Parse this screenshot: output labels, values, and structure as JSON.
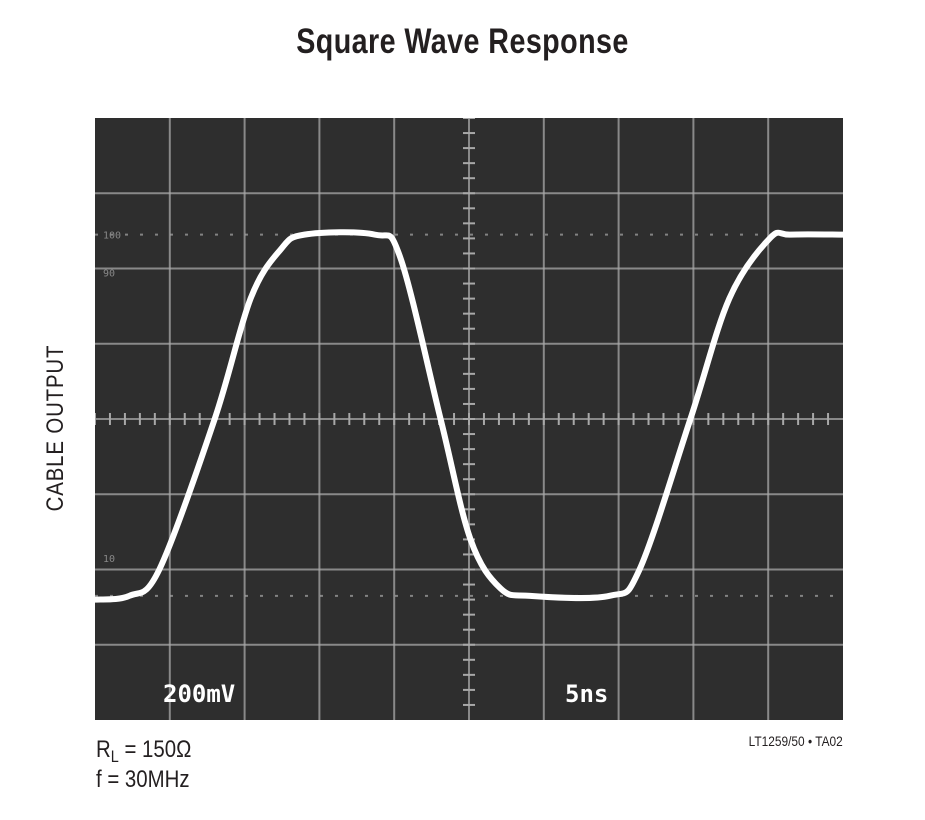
{
  "chart_data": {
    "type": "line",
    "title": "Square Wave Response",
    "ylabel": "CABLE OUTPUT",
    "vertical_scale": "200mV",
    "horizontal_scale": "5ns",
    "level_marks": [
      "100",
      "90",
      "10"
    ],
    "divisions": {
      "x": 10,
      "y": 8
    },
    "xlim_ns": [
      0,
      50
    ],
    "ylim_V": [
      -0.8,
      0.8
    ],
    "grid": true,
    "colors": {
      "screen": "#2e2e2e",
      "grid": "#a8a8a8",
      "trace": "#ffffff"
    },
    "series": [
      {
        "x": [
          0,
          2.3,
          4.3,
          8.0,
          10.4,
          12.4,
          14.0,
          18.7,
          20.4,
          23.1,
          25.1,
          27.1,
          29.1,
          34.4,
          36.4,
          39.8,
          42.4,
          45.1,
          46.5,
          50
        ],
        "y": [
          -0.48,
          -0.47,
          -0.4,
          0,
          0.32,
          0.45,
          0.49,
          0.49,
          0.43,
          0,
          -0.32,
          -0.45,
          -0.47,
          -0.47,
          -0.4,
          0,
          0.32,
          0.48,
          0.49,
          0.49
        ]
      }
    ]
  },
  "conditions": {
    "rl_prefix": "R",
    "rl_sub": "L",
    "rl_value": " = 150Ω",
    "freq": "f = 30MHz"
  },
  "figure_id": "LT1259/50 • TA02"
}
